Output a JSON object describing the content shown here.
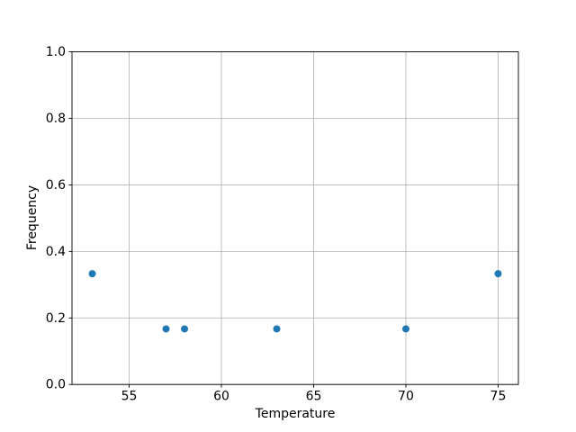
{
  "figure": {
    "background": "#ffffff"
  },
  "chart_data": {
    "type": "scatter",
    "title": "",
    "xlabel": "Temperature",
    "ylabel": "Frequency",
    "x": [
      53,
      57,
      58,
      63,
      70,
      75
    ],
    "y": [
      0.333,
      0.167,
      0.167,
      0.167,
      0.167,
      0.333
    ],
    "xlim": [
      51.9,
      76.1
    ],
    "ylim": [
      0.0,
      1.0
    ],
    "xticks": [
      55,
      60,
      65,
      70,
      75
    ],
    "xtick_labels": [
      "55",
      "60",
      "65",
      "70",
      "75"
    ],
    "yticks": [
      0.0,
      0.2,
      0.4,
      0.6,
      0.8,
      1.0
    ],
    "ytick_labels": [
      "0.0",
      "0.2",
      "0.4",
      "0.6",
      "0.8",
      "1.0"
    ],
    "grid": true,
    "legend_position": "none",
    "marker_color": "#1f77b4",
    "grid_color": "#b0b0b0",
    "spine_color": "#000000",
    "tick_label_color": "#000000"
  }
}
